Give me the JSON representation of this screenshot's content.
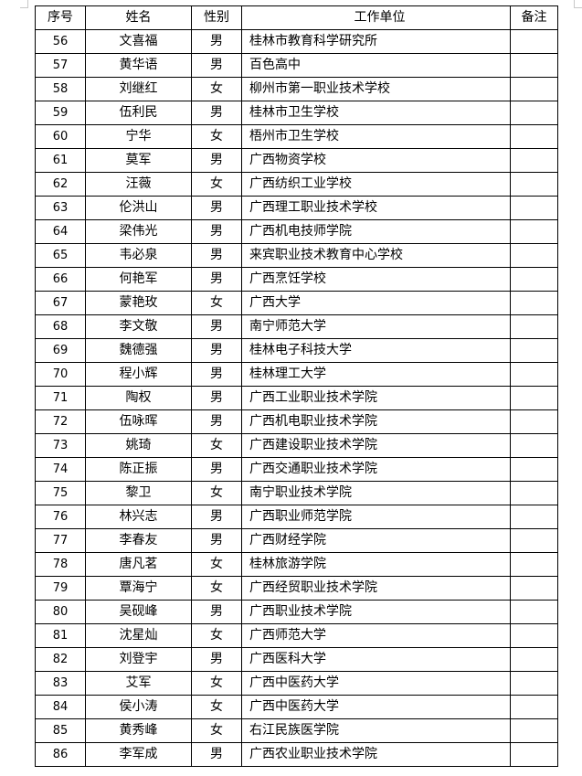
{
  "header": {
    "no": "序号",
    "name": "姓名",
    "gender": "性别",
    "unit": "工作单位",
    "remark": "备注"
  },
  "rows": [
    {
      "no": "56",
      "name": "文喜福",
      "gender": "男",
      "unit": "桂林市教育科学研究所",
      "remark": ""
    },
    {
      "no": "57",
      "name": "黄华语",
      "gender": "男",
      "unit": "百色高中",
      "remark": ""
    },
    {
      "no": "58",
      "name": "刘继红",
      "gender": "女",
      "unit": "柳州市第一职业技术学校",
      "remark": ""
    },
    {
      "no": "59",
      "name": "伍利民",
      "gender": "男",
      "unit": "桂林市卫生学校",
      "remark": ""
    },
    {
      "no": "60",
      "name": "宁华",
      "gender": "女",
      "unit": "梧州市卫生学校",
      "remark": ""
    },
    {
      "no": "61",
      "name": "莫军",
      "gender": "男",
      "unit": "广西物资学校",
      "remark": ""
    },
    {
      "no": "62",
      "name": "汪薇",
      "gender": "女",
      "unit": "广西纺织工业学校",
      "remark": ""
    },
    {
      "no": "63",
      "name": "伦洪山",
      "gender": "男",
      "unit": "广西理工职业技术学校",
      "remark": ""
    },
    {
      "no": "64",
      "name": "梁伟光",
      "gender": "男",
      "unit": "广西机电技师学院",
      "remark": ""
    },
    {
      "no": "65",
      "name": "韦必泉",
      "gender": "男",
      "unit": "来宾职业技术教育中心学校",
      "remark": ""
    },
    {
      "no": "66",
      "name": "何艳军",
      "gender": "男",
      "unit": "广西烹饪学校",
      "remark": ""
    },
    {
      "no": "67",
      "name": "蒙艳玫",
      "gender": "女",
      "unit": "广西大学",
      "remark": ""
    },
    {
      "no": "68",
      "name": "李文敬",
      "gender": "男",
      "unit": "南宁师范大学",
      "remark": ""
    },
    {
      "no": "69",
      "name": "魏德强",
      "gender": "男",
      "unit": "桂林电子科技大学",
      "remark": ""
    },
    {
      "no": "70",
      "name": "程小辉",
      "gender": "男",
      "unit": "桂林理工大学",
      "remark": ""
    },
    {
      "no": "71",
      "name": "陶权",
      "gender": "男",
      "unit": "广西工业职业技术学院",
      "remark": ""
    },
    {
      "no": "72",
      "name": "伍咏晖",
      "gender": "男",
      "unit": "广西机电职业技术学院",
      "remark": ""
    },
    {
      "no": "73",
      "name": "姚琦",
      "gender": "女",
      "unit": "广西建设职业技术学院",
      "remark": ""
    },
    {
      "no": "74",
      "name": "陈正振",
      "gender": "男",
      "unit": "广西交通职业技术学院",
      "remark": ""
    },
    {
      "no": "75",
      "name": "黎卫",
      "gender": "女",
      "unit": "南宁职业技术学院",
      "remark": ""
    },
    {
      "no": "76",
      "name": "林兴志",
      "gender": "男",
      "unit": "广西职业师范学院",
      "remark": ""
    },
    {
      "no": "77",
      "name": "李春友",
      "gender": "男",
      "unit": "广西财经学院",
      "remark": ""
    },
    {
      "no": "78",
      "name": "唐凡茗",
      "gender": "女",
      "unit": "桂林旅游学院",
      "remark": ""
    },
    {
      "no": "79",
      "name": "覃海宁",
      "gender": "女",
      "unit": "广西经贸职业技术学院",
      "remark": ""
    },
    {
      "no": "80",
      "name": "吴砚峰",
      "gender": "男",
      "unit": "广西职业技术学院",
      "remark": ""
    },
    {
      "no": "81",
      "name": "沈星灿",
      "gender": "女",
      "unit": "广西师范大学",
      "remark": ""
    },
    {
      "no": "82",
      "name": "刘登宇",
      "gender": "男",
      "unit": "广西医科大学",
      "remark": ""
    },
    {
      "no": "83",
      "name": "艾军",
      "gender": "女",
      "unit": "广西中医药大学",
      "remark": ""
    },
    {
      "no": "84",
      "name": "侯小涛",
      "gender": "女",
      "unit": "广西中医药大学",
      "remark": ""
    },
    {
      "no": "85",
      "name": "黄秀峰",
      "gender": "女",
      "unit": "右江民族医学院",
      "remark": ""
    },
    {
      "no": "86",
      "name": "李军成",
      "gender": "男",
      "unit": "广西农业职业技术学院",
      "remark": ""
    }
  ]
}
